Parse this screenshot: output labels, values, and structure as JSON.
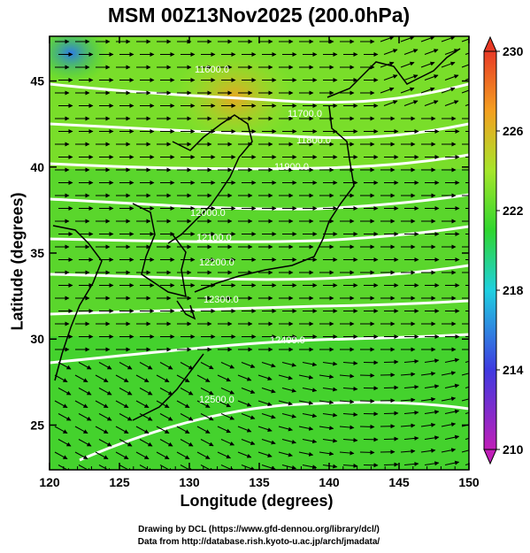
{
  "title": "MSM 00Z13Nov2025 (200.0hPa)",
  "x_axis": {
    "label": "Longitude (degrees)",
    "ticks": [
      "120",
      "125",
      "130",
      "135",
      "140",
      "145",
      "150"
    ],
    "range": [
      120,
      150
    ]
  },
  "y_axis": {
    "label": "Latitude  (degrees)",
    "ticks": [
      "25",
      "30",
      "35",
      "40",
      "45"
    ],
    "range": [
      22.4,
      47.6
    ]
  },
  "colorbar": {
    "ticks": [
      "210",
      "214",
      "218",
      "222",
      "226",
      "230"
    ],
    "range": [
      210,
      230
    ],
    "colors": [
      "#c01fb8",
      "#3f3ae0",
      "#1fd0e0",
      "#2fd62f",
      "#a6e62b",
      "#f4a020",
      "#e83a26"
    ]
  },
  "contour_labels": [
    "11600.0",
    "11700.0",
    "11800.0",
    "11900.0",
    "12000.0",
    "12100.0",
    "12200.0",
    "12300.0",
    "12400.0",
    "12500.0"
  ],
  "credits": {
    "line1": "Drawing by DCL (https://www.gfd-dennou.org/library/dcl/)",
    "line2": "Data from http://database.rish.kyoto-u.ac.jp/arch/jmadata/"
  }
}
